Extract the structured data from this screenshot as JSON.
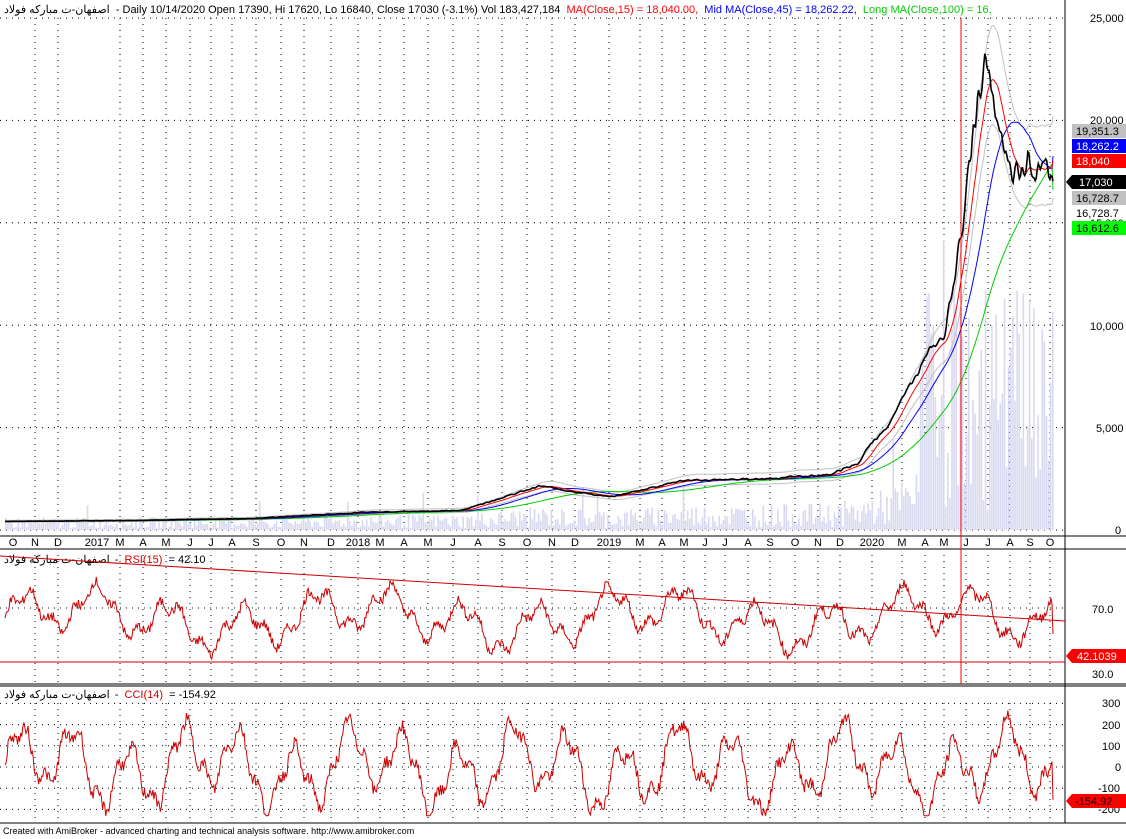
{
  "header": {
    "symbol": "اصفهان-ت مباركه فولاد",
    "info": "- Daily 10/14/2020 Open 17390, Hi 17620, Lo 16840, Close 17030 (-3.1%) Vol 183,427,184",
    "ma15_text": "MA(Close,15) = 18,040.00,",
    "ma45_text": "Mid MA(Close,45) = 18,262.22,",
    "ma100_text": "Long MA(Close,100) = 16,"
  },
  "colors": {
    "price": "#000000",
    "ma15": "#ff0000",
    "ma45": "#0000ff",
    "ma100": "#00cc00",
    "bands": "#c0c0c0",
    "volume": "#d8d8f0",
    "indicator": "#cc0000",
    "cursor": "#ff0000"
  },
  "price_axis": {
    "ticks": [
      "25,000",
      "20,000",
      "15,000",
      "10,000",
      "5,000",
      "0"
    ]
  },
  "price_tags": [
    {
      "text": "19,351.3",
      "bg": "#c0c0c0",
      "fg": "#000000"
    },
    {
      "text": "18,262.2",
      "bg": "#0000ff",
      "fg": "#ffffff"
    },
    {
      "text": "18,040",
      "bg": "#ff0000",
      "fg": "#ffffff"
    },
    {
      "text": "17,030",
      "bg": "#000000",
      "fg": "#ffffff"
    },
    {
      "text": "16,728.7",
      "bg": "#c0c0c0",
      "fg": "#000000"
    },
    {
      "text": "16,728.7",
      "bg": "#ffffff",
      "fg": "#000000"
    },
    {
      "text": "16,612.6",
      "bg": "#00ff00",
      "fg": "#000000"
    }
  ],
  "months": [
    "O",
    "N",
    "D",
    "2017",
    "M",
    "A",
    "M",
    "J",
    "J",
    "A",
    "S",
    "O",
    "N",
    "D",
    "2018",
    "M",
    "A",
    "M",
    "J",
    "A",
    "S",
    "O",
    "N",
    "D",
    "2019",
    "M",
    "A",
    "M",
    "J",
    "J",
    "A",
    "S",
    "O",
    "N",
    "D",
    "2020",
    "M",
    "A",
    "M",
    "J",
    "J",
    "A",
    "S",
    "O"
  ],
  "rsi": {
    "title_symbol": "اصفهان-ت مباركه فولاد",
    "title_label": "RSI(15)",
    "title_value": "= 42.10",
    "axis": [
      "70.0",
      "30.0"
    ],
    "tag": "42.1039"
  },
  "cci": {
    "title_symbol": "اصفهان-ت مباركه فولاد",
    "title_label": "CCI(14)",
    "title_value": "= -154.92",
    "axis": [
      "300",
      "200",
      "100",
      "0",
      "-100",
      "-200"
    ],
    "tag": "-154.92"
  },
  "footer": "Created with AmiBroker - advanced charting and technical analysis software. http://www.amibroker.com",
  "chart_data": {
    "type": "line",
    "title": "اصفهان-ت مباركه فولاد - Daily 10/14/2020",
    "ylim": [
      0,
      25000
    ],
    "x_range": [
      "2016-10",
      "2020-10"
    ],
    "ohlc_last": {
      "open": 17390,
      "high": 17620,
      "low": 16840,
      "close": 17030,
      "change_pct": -3.1,
      "volume": 183427184
    },
    "series": [
      {
        "name": "Close",
        "x": [
          "2016-10",
          "2017-04",
          "2017-10",
          "2018-03",
          "2018-07",
          "2018-10",
          "2019-01",
          "2019-04",
          "2019-07",
          "2019-10",
          "2019-12",
          "2020-01",
          "2020-02",
          "2020-03",
          "2020-04",
          "2020-05",
          "2020-06",
          "2020-07",
          "2020-08",
          "2020-09",
          "2020-10"
        ],
        "values": [
          420,
          460,
          560,
          880,
          950,
          2150,
          1600,
          2400,
          2500,
          2700,
          3300,
          4200,
          4900,
          8800,
          9500,
          16000,
          23000,
          18500,
          17500,
          18500,
          17030
        ]
      },
      {
        "name": "MA(Close,15)",
        "last": 18040
      },
      {
        "name": "Mid MA(Close,45)",
        "last": 18262.22
      },
      {
        "name": "Long MA(Close,100)",
        "last": 16612.6
      }
    ],
    "rsi": {
      "name": "RSI(15)",
      "last": 42.1039,
      "levels": [
        70,
        30
      ]
    },
    "cci": {
      "name": "CCI(14)",
      "last": -154.92,
      "levels": [
        300,
        200,
        100,
        0,
        -100,
        -200
      ]
    }
  }
}
